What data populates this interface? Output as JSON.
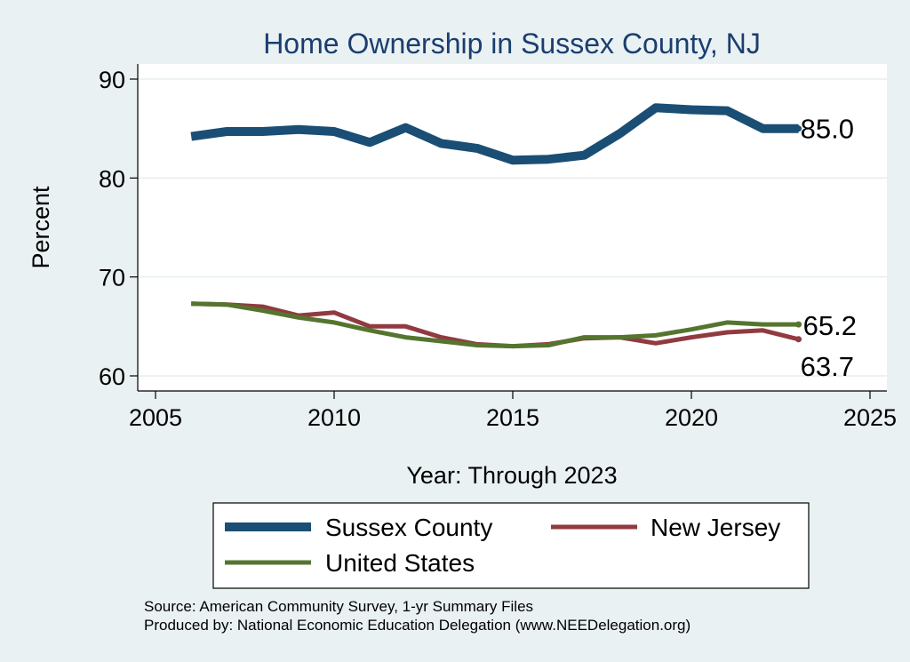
{
  "chart_data": {
    "type": "line",
    "title": "Home Ownership in Sussex County, NJ",
    "xlabel": "Year: Through 2023",
    "ylabel": "Percent",
    "xlim": [
      2005,
      2025
    ],
    "ylim": [
      59,
      91
    ],
    "xticks": [
      2005,
      2010,
      2015,
      2020,
      2025
    ],
    "yticks": [
      60,
      70,
      80,
      90
    ],
    "grid": true,
    "legend_position": "bottom",
    "x": [
      2006,
      2007,
      2008,
      2009,
      2010,
      2011,
      2012,
      2013,
      2014,
      2015,
      2016,
      2017,
      2018,
      2019,
      2020,
      2021,
      2022,
      2023
    ],
    "series": [
      {
        "name": "Sussex County",
        "color": "#1a4e74",
        "values": [
          84.2,
          84.7,
          84.7,
          84.9,
          84.7,
          83.6,
          85.1,
          83.5,
          83.0,
          81.8,
          81.9,
          82.3,
          84.5,
          87.1,
          86.9,
          86.8,
          85.0,
          85.0
        ],
        "end_label": "85.0"
      },
      {
        "name": "New Jersey",
        "color": "#913a40",
        "values": [
          67.3,
          67.2,
          67.0,
          66.1,
          66.4,
          65.0,
          65.0,
          63.9,
          63.2,
          63.0,
          63.2,
          63.8,
          63.9,
          63.3,
          63.9,
          64.4,
          64.6,
          63.7
        ],
        "end_label": "63.7"
      },
      {
        "name": "United States",
        "color": "#55752f",
        "values": [
          67.3,
          67.2,
          66.6,
          65.9,
          65.4,
          64.6,
          63.9,
          63.5,
          63.1,
          63.0,
          63.1,
          63.9,
          63.9,
          64.1,
          64.7,
          65.4,
          65.2,
          65.2
        ],
        "end_label": "65.2"
      }
    ],
    "source": [
      "Source: American Community Survey, 1-yr Summary Files",
      "Produced by: National Economic Education Delegation (www.NEEDelegation.org)"
    ]
  }
}
